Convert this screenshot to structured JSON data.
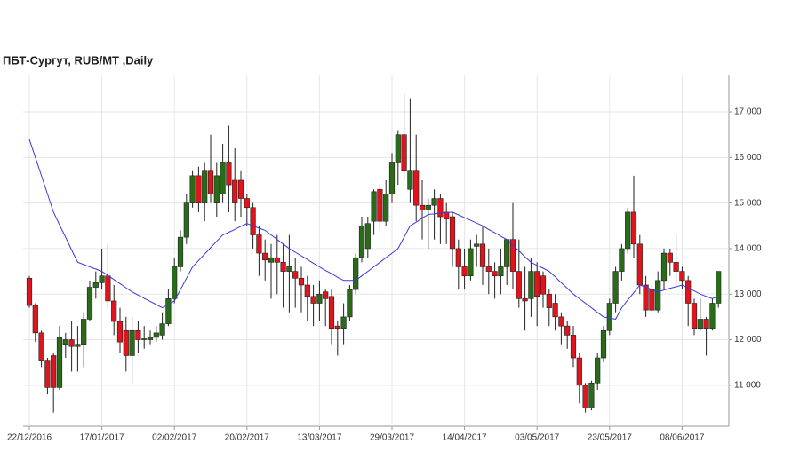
{
  "chart_data": {
    "type": "candlestick",
    "title": "ПБТ-Сургут,  RUB/MT ,Daily",
    "categories": [
      "22/12/2016",
      null,
      null,
      null,
      null,
      null,
      null,
      null,
      null,
      null,
      null,
      null,
      "17/01/2017",
      null,
      null,
      null,
      null,
      null,
      null,
      null,
      null,
      null,
      null,
      null,
      "02/02/2017",
      null,
      null,
      null,
      null,
      null,
      null,
      null,
      null,
      null,
      null,
      null,
      "20/02/2017",
      null,
      null,
      null,
      null,
      null,
      null,
      null,
      null,
      null,
      null,
      null,
      "13/03/2017",
      null,
      null,
      null,
      null,
      null,
      null,
      null,
      null,
      null,
      null,
      null,
      "29/03/2017",
      null,
      null,
      null,
      null,
      null,
      null,
      null,
      null,
      null,
      null,
      null,
      "14/04/2017",
      null,
      null,
      null,
      null,
      null,
      null,
      null,
      null,
      null,
      null,
      null,
      "03/05/2017",
      null,
      null,
      null,
      null,
      null,
      null,
      null,
      null,
      null,
      null,
      null,
      "23/05/2017",
      null,
      null,
      null,
      null,
      null,
      null,
      null,
      null,
      null,
      null,
      null,
      "08/06/2017",
      null,
      null,
      null,
      null,
      null,
      null
    ],
    "open": [
      13350,
      12750,
      12150,
      11550,
      11650,
      10950,
      11900,
      12000,
      11850,
      11900,
      12450,
      13150,
      13250,
      13400,
      12850,
      12400,
      12200,
      11650,
      12200,
      12000,
      12000,
      12050,
      12100,
      12350,
      12900,
      13600,
      14250,
      15000,
      15600,
      15000,
      15700,
      15000,
      15200,
      15900,
      15500,
      15500,
      15100,
      14900,
      14300,
      13900,
      13700,
      13800,
      13700,
      13500,
      13500,
      13350,
      13200,
      12950,
      12800,
      13050,
      12950,
      12300,
      12250,
      12500,
      13100,
      13800,
      14000,
      14600,
      15300,
      14600,
      15200,
      15900,
      16500,
      15300,
      15700,
      14950,
      14850,
      14950,
      15100,
      14800,
      14700,
      14000,
      13600,
      13400,
      14050,
      14100,
      13600,
      13500,
      13400,
      13600,
      14200,
      13500,
      12900,
      12900,
      13500,
      13400,
      13000,
      12800,
      12500,
      12300,
      12100,
      11600,
      11000,
      10500,
      11050,
      11600,
      12200,
      12800,
      13500,
      14000,
      14800,
      14100,
      13200,
      13100,
      12650,
      13300,
      13900,
      13700,
      13500,
      13300,
      12800,
      12250,
      12450,
      12250,
      12800
    ],
    "high": [
      13400,
      12800,
      12200,
      11600,
      11700,
      12300,
      12150,
      12400,
      12300,
      12600,
      13300,
      13500,
      14000,
      14100,
      13200,
      12700,
      12500,
      12500,
      12400,
      12300,
      12200,
      12300,
      12600,
      13100,
      13800,
      14400,
      15200,
      15700,
      15800,
      15900,
      16500,
      15900,
      16300,
      16700,
      16200,
      15700,
      15200,
      15000,
      14500,
      14200,
      14100,
      14300,
      14100,
      14300,
      13800,
      13600,
      13400,
      13200,
      13300,
      13100,
      13100,
      12400,
      12800,
      13200,
      13900,
      14700,
      14700,
      15300,
      15400,
      15500,
      16100,
      16600,
      17400,
      17300,
      16500,
      15500,
      15100,
      15300,
      15200,
      15000,
      14800,
      14200,
      14000,
      14200,
      14300,
      14500,
      14000,
      13700,
      14000,
      14200,
      15000,
      14200,
      13600,
      13800,
      13700,
      13500,
      13100,
      13000,
      12600,
      12400,
      12300,
      11700,
      11050,
      11100,
      11700,
      12300,
      12900,
      13600,
      14100,
      14900,
      15600,
      14300,
      13400,
      13200,
      13500,
      14000,
      14000,
      14300,
      13600,
      13400,
      12900,
      12900,
      12500,
      12900,
      13500
    ],
    "low": [
      12700,
      11950,
      11400,
      10800,
      10400,
      10900,
      11600,
      11300,
      11300,
      11400,
      12400,
      12900,
      13100,
      12700,
      12100,
      11700,
      11300,
      11050,
      11700,
      11800,
      11900,
      11950,
      12000,
      12300,
      12800,
      13500,
      14100,
      14900,
      14800,
      14600,
      15000,
      14700,
      15000,
      14800,
      14600,
      14700,
      14500,
      14000,
      13400,
      13300,
      12900,
      13000,
      12700,
      12600,
      12700,
      12600,
      12400,
      12300,
      12400,
      12300,
      11900,
      11650,
      11900,
      12400,
      13000,
      13700,
      13800,
      14300,
      14400,
      14500,
      15000,
      15400,
      15500,
      15000,
      14600,
      14200,
      14000,
      14200,
      14100,
      14100,
      13600,
      13100,
      13100,
      13300,
      13600,
      13200,
      13000,
      12900,
      13000,
      13200,
      13100,
      12700,
      12200,
      12500,
      12300,
      12700,
      12300,
      12200,
      11900,
      11800,
      11400,
      10600,
      10400,
      10450,
      10900,
      11500,
      12100,
      12600,
      13300,
      13900,
      13800,
      13000,
      12500,
      12600,
      12600,
      13100,
      13400,
      13200,
      13100,
      12300,
      12100,
      12200,
      11650,
      12200,
      12700
    ],
    "close": [
      12750,
      12150,
      11550,
      10950,
      10950,
      12050,
      12000,
      11850,
      11900,
      12450,
      13150,
      13250,
      13400,
      12850,
      12400,
      11950,
      11650,
      12200,
      12000,
      12020,
      12050,
      12150,
      12350,
      12900,
      13600,
      14250,
      15000,
      15600,
      15000,
      15700,
      15200,
      15600,
      15900,
      15400,
      15000,
      15100,
      14900,
      14300,
      13900,
      13750,
      13800,
      13700,
      13500,
      13600,
      13350,
      13200,
      12950,
      12800,
      13000,
      12900,
      12250,
      12250,
      12500,
      13100,
      13800,
      14500,
      14550,
      15250,
      14600,
      15200,
      15900,
      16500,
      15700,
      15700,
      14950,
      14850,
      14950,
      15100,
      14700,
      14650,
      14000,
      13600,
      13400,
      14000,
      14100,
      13600,
      13500,
      13400,
      13600,
      14200,
      13500,
      12900,
      12850,
      13500,
      12950,
      13000,
      12700,
      12500,
      12300,
      12100,
      11600,
      11000,
      10500,
      11050,
      11600,
      12200,
      12800,
      13500,
      14000,
      14800,
      14100,
      13200,
      12650,
      12650,
      13300,
      13900,
      13700,
      13500,
      13300,
      12800,
      12250,
      12450,
      12250,
      12800,
      13500
    ],
    "up_color": "#2a6b1a",
    "down_color": "#e0141c",
    "moving_average": {
      "color": "#3a3adb",
      "values": [
        16400,
        16000,
        15600,
        15200,
        14800,
        14520,
        14250,
        13970,
        13700,
        13650,
        13600,
        13550,
        13500,
        13410,
        13320,
        13230,
        13140,
        13050,
        12980,
        12910,
        12840,
        12770,
        12700,
        12770,
        12850,
        13100,
        13350,
        13600,
        13740,
        13880,
        14020,
        14160,
        14300,
        14360,
        14420,
        14490,
        14550,
        14500,
        14450,
        14400,
        14300,
        14200,
        14100,
        14000,
        13920,
        13840,
        13760,
        13680,
        13600,
        13520,
        13450,
        13370,
        13300,
        13300,
        13300,
        13400,
        13500,
        13600,
        13700,
        13800,
        13900,
        14000,
        14250,
        14500,
        14580,
        14670,
        14750,
        14760,
        14780,
        14790,
        14800,
        14740,
        14680,
        14620,
        14560,
        14500,
        14420,
        14350,
        14270,
        14200,
        14070,
        13950,
        13820,
        13700,
        13630,
        13570,
        13500,
        13380,
        13250,
        13130,
        13000,
        12900,
        12800,
        12700,
        12600,
        12500,
        12470,
        12450,
        12700,
        12870,
        13030,
        13200,
        13150,
        13100,
        13050,
        13090,
        13130,
        13160,
        13200,
        13130,
        13070,
        13000,
        12950,
        12900,
        12950
      ]
    },
    "ylim": [
      10100,
      17800
    ],
    "yticks": [
      {
        "value": 11000,
        "label": "11 000"
      },
      {
        "value": 12000,
        "label": "12 000"
      },
      {
        "value": 13000,
        "label": "13 000"
      },
      {
        "value": 14000,
        "label": "14 000"
      },
      {
        "value": 15000,
        "label": "15 000"
      },
      {
        "value": 16000,
        "label": "16 000"
      },
      {
        "value": 17000,
        "label": "17 000"
      }
    ],
    "grid": true
  }
}
